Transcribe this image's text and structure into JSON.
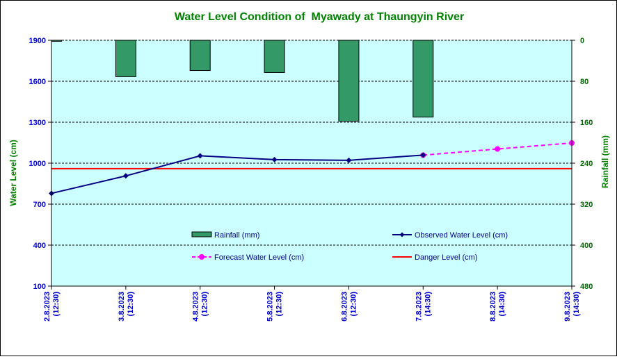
{
  "chart_data": {
    "type": "combo-bar-line",
    "title": "Water Level Condition of  Myawady at Thaungyin River",
    "ylabel_left": "Water Level (cm)",
    "ylabel_right": "Rainfall (mm)",
    "y_left": {
      "min": 100,
      "max": 1900,
      "ticks": [
        100,
        400,
        700,
        1000,
        1300,
        1600,
        1900
      ]
    },
    "y_right": {
      "min": 0,
      "max": 480,
      "reversed": true,
      "ticks": [
        0,
        80,
        160,
        240,
        320,
        400,
        480
      ]
    },
    "categories": [
      "2.8.2023 (12:30)",
      "3.8.2023 (12:30)",
      "4.8.2023 (12:30)",
      "5.8.2023 (12:30)",
      "6.8.2023 (12:30)",
      "7.8.2023 (14:30)",
      "8.8.2023 (14:30)",
      "9.8.2023 (14:30)"
    ],
    "category_lines": [
      [
        "2.8.2023",
        "(12:30)"
      ],
      [
        "3.8.2023",
        "(12:30)"
      ],
      [
        "4.8.2023",
        "(12:30)"
      ],
      [
        "5.8.2023",
        "(12:30)"
      ],
      [
        "6.8.2023",
        "(12:30)"
      ],
      [
        "7.8.2023",
        "(14:30)"
      ],
      [
        "8.8.2023",
        "(14:30)"
      ],
      [
        "9.8.2023",
        "(14:30)"
      ]
    ],
    "series": [
      {
        "name": "Rainfall (mm)",
        "kind": "bar",
        "axis": "right",
        "color": "#339966",
        "values": [
          2,
          71,
          59,
          63,
          158,
          150,
          null,
          null
        ]
      },
      {
        "name": "Observed Water Level (cm)",
        "kind": "line",
        "axis": "left",
        "color": "#000080",
        "values": [
          779,
          907,
          1054,
          1026,
          1021,
          1059,
          null,
          null
        ]
      },
      {
        "name": "Forecast Water Level (cm)",
        "kind": "line-dashed",
        "axis": "left",
        "color": "#FF00FF",
        "values": [
          null,
          null,
          null,
          null,
          null,
          1059,
          1104,
          1148
        ]
      },
      {
        "name": "Danger Level (cm)",
        "kind": "hline",
        "axis": "left",
        "color": "#FF0000",
        "value": 960
      }
    ],
    "grid": true,
    "legend_position": "inside-bottom",
    "colors": {
      "plot_bg": "#CCFFFF",
      "title": "#008000",
      "axis_left": "#0000CC",
      "axis_right": "#006600",
      "category_labels": "#0000CC"
    }
  }
}
